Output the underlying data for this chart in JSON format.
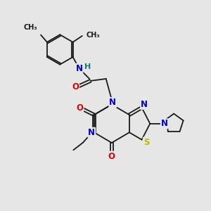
{
  "background_color": "#e6e6e6",
  "bond_color": "#1a1a1a",
  "atom_colors": {
    "N": "#0000cc",
    "O": "#dd0000",
    "S": "#bbbb00",
    "H": "#008080",
    "C": "#1a1a1a"
  }
}
